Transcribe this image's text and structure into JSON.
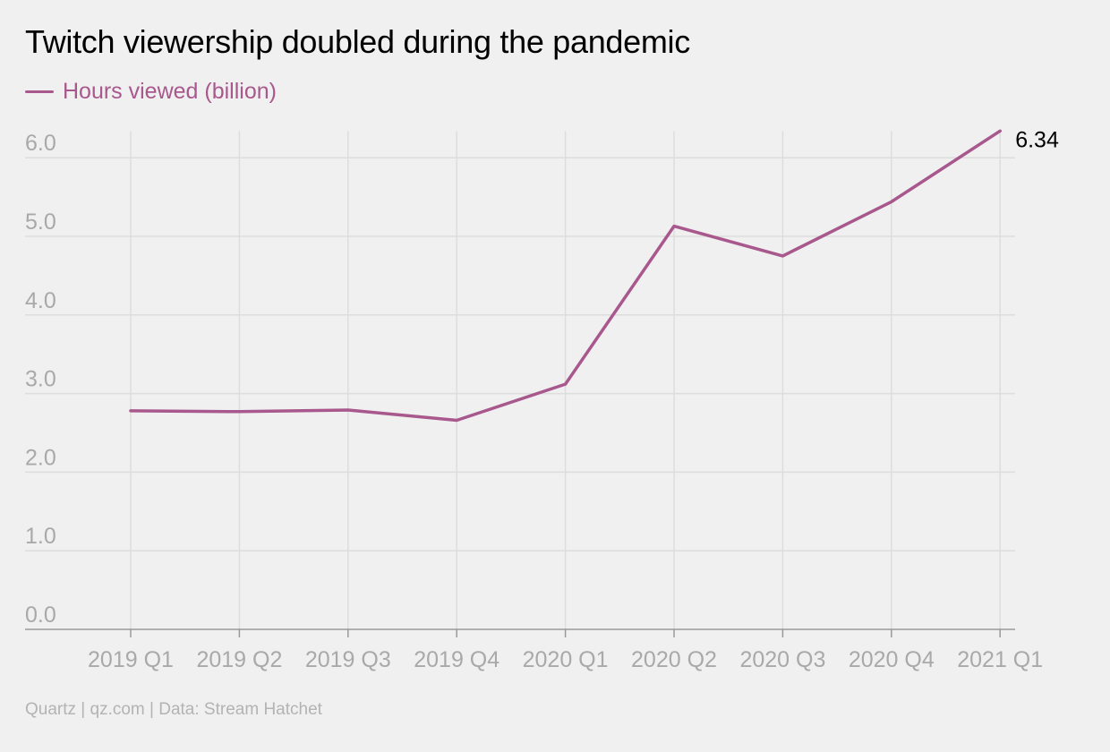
{
  "title": "Twitch viewership doubled during the pandemic",
  "footer": "Quartz | qz.com | Data: Stream Hatchet",
  "colors": {
    "series": "#a8588c",
    "grid": "#dddddd",
    "axis": "#9a9a9a",
    "tick": "#a9a9a9",
    "background": "#f0f0f0"
  },
  "chart_data": {
    "type": "line",
    "categories": [
      "2019 Q1",
      "2019 Q2",
      "2019 Q3",
      "2019 Q4",
      "2020 Q1",
      "2020 Q2",
      "2020 Q3",
      "2020 Q4",
      "2021 Q1"
    ],
    "series": [
      {
        "name": "Hours viewed (billion)",
        "values": [
          2.78,
          2.77,
          2.79,
          2.66,
          3.12,
          5.13,
          4.75,
          5.44,
          6.34
        ]
      }
    ],
    "end_label": "6.34",
    "yticks": [
      "0.0",
      "1.0",
      "2.0",
      "3.0",
      "4.0",
      "5.0",
      "6.0"
    ],
    "ylim": [
      0,
      6.34
    ],
    "grid": true,
    "legend_position": "top-left"
  }
}
